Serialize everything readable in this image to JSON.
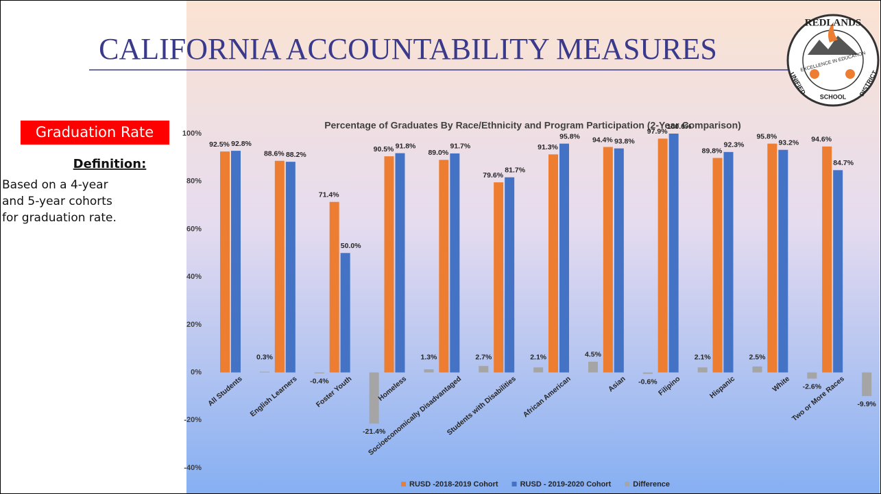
{
  "slide": {
    "title": "CALIFORNIA ACCOUNTABILITY MEASURES",
    "badge": "Graduation Rate",
    "definition_heading": "Definition:",
    "definition_lines": [
      "Based on a 4-year",
      "and 5-year cohorts",
      "for  graduation rate."
    ],
    "logo": {
      "top": "REDLANDS",
      "motto": "EXCELLENCE IN EDUCATION",
      "left": "UNIFIED",
      "bottom": "SCHOOL",
      "right": "DISTRICT"
    }
  },
  "chart_data": {
    "type": "bar",
    "title": "Percentage of Graduates By Race/Ethnicity and Program Participation (2-Year Comparison)",
    "categories": [
      "All Students",
      "English Learners",
      "Foster Youth",
      "Homeless",
      "Socioeconomically Disadvantaged",
      "Students with Disabilities",
      "African American",
      "Asian",
      "Filipino",
      "Hispanic",
      "White",
      "Two or More Races"
    ],
    "series": [
      {
        "name": "RUSD -2018-2019 Cohort",
        "color": "#ed7d31",
        "values": [
          92.5,
          88.6,
          71.4,
          90.5,
          89.0,
          79.6,
          91.3,
          94.4,
          97.9,
          89.8,
          95.8,
          94.6
        ],
        "value_labels": [
          "92.5%",
          "88.6%",
          "71.4%",
          "90.5%",
          "89.0%",
          "79.6%",
          "91.3%",
          "94.4%",
          "97.9%",
          "89.8%",
          "95.8%",
          "94.6%"
        ]
      },
      {
        "name": "RUSD - 2019-2020 Cohort",
        "color": "#4472c4",
        "values": [
          92.8,
          88.2,
          50.0,
          91.8,
          91.7,
          81.7,
          95.8,
          93.8,
          100.0,
          92.3,
          93.2,
          84.7
        ],
        "value_labels": [
          "92.8%",
          "88.2%",
          "50.0%",
          "91.8%",
          "91.7%",
          "81.7%",
          "95.8%",
          "93.8%",
          "100.0%",
          "92.3%",
          "93.2%",
          "84.7%"
        ]
      },
      {
        "name": "Difference",
        "color": "#a5a5a5",
        "values": [
          0.3,
          -0.4,
          -21.4,
          1.3,
          2.7,
          2.1,
          4.5,
          -0.6,
          2.1,
          2.5,
          -2.6,
          -9.9
        ],
        "value_labels": [
          "0.3%",
          "-0.4%",
          "-21.4%",
          "1.3%",
          "2.7%",
          "2.1%",
          "4.5%",
          "-0.6%",
          "2.1%",
          "2.5%",
          "-2.6%",
          "-9.9%"
        ]
      }
    ],
    "ylim": [
      -40,
      100
    ],
    "yticks": [
      {
        "value": -40,
        "label": "-40%"
      },
      {
        "value": -20,
        "label": "-20%"
      },
      {
        "value": 0,
        "label": "0%"
      },
      {
        "value": 20,
        "label": "20%"
      },
      {
        "value": 40,
        "label": "40%"
      },
      {
        "value": 60,
        "label": "60%"
      },
      {
        "value": 80,
        "label": "80%"
      },
      {
        "value": 100,
        "label": "100%"
      }
    ],
    "grid": false,
    "legend": "bottom"
  }
}
